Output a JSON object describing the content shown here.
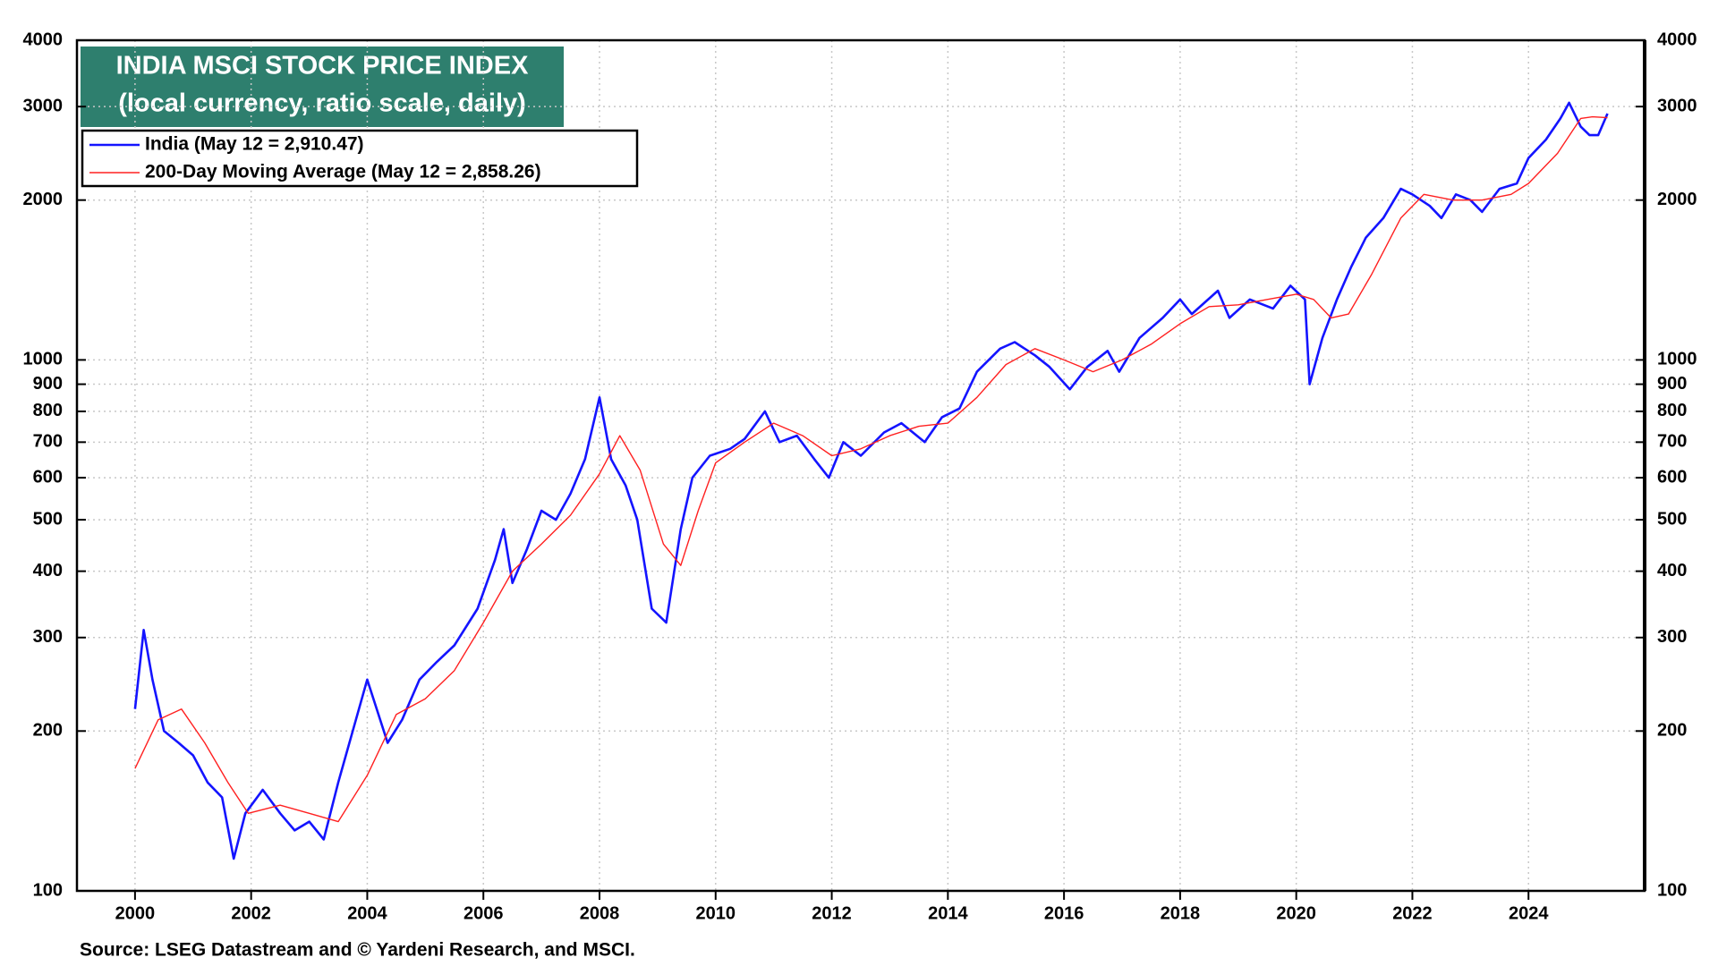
{
  "chart_data": {
    "type": "line",
    "title": "INDIA MSCI STOCK PRICE INDEX",
    "subtitle": "(local currency, ratio scale, daily)",
    "source": "Source: LSEG Datastream and © Yardeni Research, and MSCI.",
    "log_scale": true,
    "grid": true,
    "legend": "top-left",
    "xlim": [
      1999,
      2026
    ],
    "xticks": [
      2000,
      2002,
      2004,
      2006,
      2008,
      2010,
      2012,
      2014,
      2016,
      2018,
      2020,
      2022,
      2024
    ],
    "ylim": [
      100,
      4000
    ],
    "yticks": [
      100,
      200,
      300,
      400,
      500,
      600,
      700,
      800,
      900,
      1000,
      2000,
      3000,
      4000
    ],
    "series": [
      {
        "name": "India (May 12 = 2,910.47)",
        "color": "#1414ff",
        "x": [
          2000.0,
          2000.15,
          2000.3,
          2000.5,
          2000.75,
          2001.0,
          2001.25,
          2001.5,
          2001.7,
          2001.9,
          2002.2,
          2002.5,
          2002.75,
          2003.0,
          2003.25,
          2003.5,
          2003.75,
          2004.0,
          2004.35,
          2004.6,
          2004.9,
          2005.2,
          2005.5,
          2005.9,
          2006.2,
          2006.35,
          2006.5,
          2006.75,
          2007.0,
          2007.25,
          2007.5,
          2007.75,
          2008.0,
          2008.2,
          2008.45,
          2008.65,
          2008.9,
          2009.15,
          2009.4,
          2009.6,
          2009.9,
          2010.25,
          2010.5,
          2010.85,
          2011.1,
          2011.4,
          2011.7,
          2011.95,
          2012.2,
          2012.5,
          2012.9,
          2013.2,
          2013.6,
          2013.9,
          2014.2,
          2014.5,
          2014.9,
          2015.15,
          2015.5,
          2015.75,
          2016.1,
          2016.4,
          2016.75,
          2016.95,
          2017.3,
          2017.7,
          2018.0,
          2018.2,
          2018.65,
          2018.85,
          2019.2,
          2019.6,
          2019.9,
          2020.15,
          2020.23,
          2020.45,
          2020.7,
          2020.95,
          2021.2,
          2021.5,
          2021.8,
          2022.0,
          2022.3,
          2022.5,
          2022.75,
          2023.0,
          2023.2,
          2023.5,
          2023.8,
          2024.0,
          2024.3,
          2024.55,
          2024.7,
          2024.9,
          2025.05,
          2025.2,
          2025.36
        ],
        "values": [
          220,
          310,
          250,
          200,
          190,
          180,
          160,
          150,
          115,
          140,
          155,
          140,
          130,
          135,
          125,
          160,
          200,
          250,
          190,
          210,
          250,
          270,
          290,
          340,
          420,
          480,
          380,
          440,
          520,
          500,
          560,
          650,
          850,
          650,
          580,
          500,
          340,
          320,
          480,
          600,
          660,
          680,
          710,
          800,
          700,
          720,
          650,
          600,
          700,
          660,
          730,
          760,
          700,
          780,
          810,
          950,
          1050,
          1080,
          1020,
          970,
          880,
          970,
          1040,
          950,
          1100,
          1200,
          1300,
          1220,
          1350,
          1200,
          1300,
          1250,
          1380,
          1300,
          900,
          1100,
          1300,
          1500,
          1700,
          1850,
          2100,
          2050,
          1950,
          1850,
          2050,
          2000,
          1900,
          2100,
          2150,
          2400,
          2600,
          2850,
          3050,
          2750,
          2650,
          2650,
          2910.47
        ]
      },
      {
        "name": "200-Day Moving Average (May 12 = 2,858.26)",
        "color": "#ff2020",
        "x": [
          2000.0,
          2000.4,
          2000.8,
          2001.2,
          2001.6,
          2001.95,
          2002.5,
          2003.0,
          2003.5,
          2004.0,
          2004.5,
          2005.0,
          2005.5,
          2006.0,
          2006.5,
          2007.0,
          2007.5,
          2008.0,
          2008.35,
          2008.7,
          2009.1,
          2009.4,
          2009.7,
          2010.0,
          2010.5,
          2011.0,
          2011.5,
          2012.0,
          2012.5,
          2013.0,
          2013.5,
          2014.0,
          2014.5,
          2015.0,
          2015.5,
          2016.0,
          2016.5,
          2017.0,
          2017.5,
          2018.0,
          2018.5,
          2019.0,
          2019.5,
          2020.0,
          2020.3,
          2020.6,
          2020.9,
          2021.3,
          2021.8,
          2022.2,
          2022.7,
          2023.2,
          2023.7,
          2024.0,
          2024.5,
          2024.9,
          2025.1,
          2025.36
        ],
        "values": [
          170,
          210,
          220,
          190,
          160,
          140,
          145,
          140,
          135,
          165,
          215,
          230,
          260,
          320,
          400,
          450,
          510,
          610,
          720,
          620,
          450,
          410,
          520,
          640,
          700,
          760,
          720,
          660,
          680,
          720,
          750,
          760,
          850,
          980,
          1050,
          1000,
          950,
          1000,
          1070,
          1170,
          1260,
          1270,
          1300,
          1330,
          1300,
          1200,
          1220,
          1450,
          1850,
          2050,
          2000,
          2000,
          2050,
          2150,
          2450,
          2850,
          2870,
          2858.26
        ]
      }
    ]
  }
}
